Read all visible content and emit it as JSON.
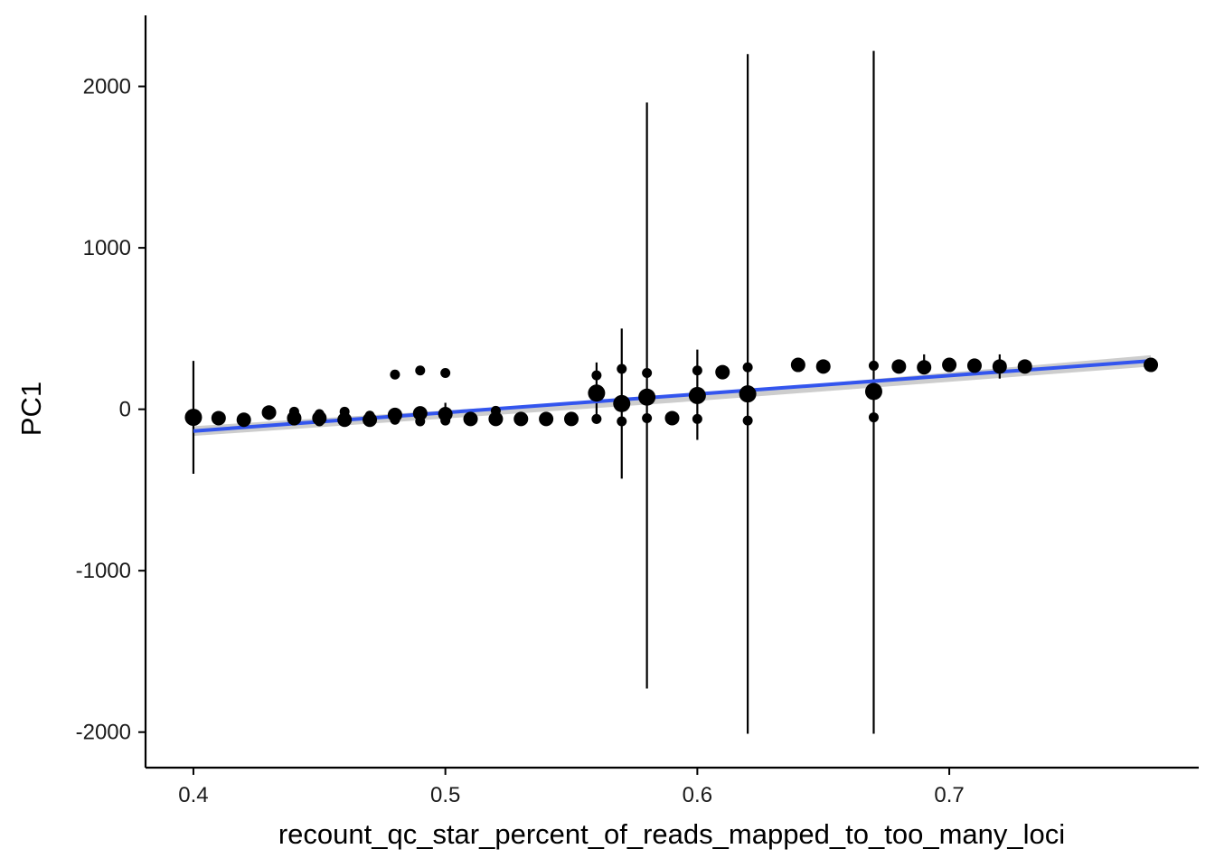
{
  "chart_data": {
    "type": "scatter",
    "title": "",
    "xlabel": "recount_qc_star_percent_of_reads_mapped_to_too_many_loci",
    "ylabel": "PC1",
    "xlim": [
      0.381,
      0.799
    ],
    "ylim": [
      -2220,
      2440
    ],
    "x_ticks": [
      0.4,
      0.5,
      0.6,
      0.7
    ],
    "x_tick_labels": [
      "0.4",
      "0.5",
      "0.6",
      "0.7"
    ],
    "y_ticks": [
      -2000,
      -1000,
      0,
      1000,
      2000
    ],
    "y_tick_labels": [
      "-2000",
      "-1000",
      "0",
      "1000",
      "2000"
    ],
    "grid": false,
    "points": [
      {
        "x": 0.4,
        "y": -50,
        "size": "large"
      },
      {
        "x": 0.41,
        "y": -55,
        "size": "medium"
      },
      {
        "x": 0.42,
        "y": -65,
        "size": "medium"
      },
      {
        "x": 0.43,
        "y": -20,
        "size": "medium"
      },
      {
        "x": 0.43,
        "y": -35,
        "size": "small"
      },
      {
        "x": 0.44,
        "y": -15,
        "size": "small"
      },
      {
        "x": 0.44,
        "y": -55,
        "size": "medium"
      },
      {
        "x": 0.44,
        "y": -70,
        "size": "small"
      },
      {
        "x": 0.45,
        "y": -30,
        "size": "small"
      },
      {
        "x": 0.45,
        "y": -55,
        "size": "medium"
      },
      {
        "x": 0.45,
        "y": -75,
        "size": "small"
      },
      {
        "x": 0.46,
        "y": -15,
        "size": "small"
      },
      {
        "x": 0.46,
        "y": -65,
        "size": "medium"
      },
      {
        "x": 0.47,
        "y": -65,
        "size": "medium"
      },
      {
        "x": 0.47,
        "y": -40,
        "size": "small"
      },
      {
        "x": 0.48,
        "y": 215,
        "size": "small"
      },
      {
        "x": 0.48,
        "y": -35,
        "size": "medium"
      },
      {
        "x": 0.48,
        "y": -65,
        "size": "small"
      },
      {
        "x": 0.49,
        "y": 240,
        "size": "small"
      },
      {
        "x": 0.49,
        "y": -25,
        "size": "medium"
      },
      {
        "x": 0.49,
        "y": -75,
        "size": "small"
      },
      {
        "x": 0.5,
        "y": 225,
        "size": "small"
      },
      {
        "x": 0.5,
        "y": -30,
        "size": "medium"
      },
      {
        "x": 0.5,
        "y": -70,
        "size": "small"
      },
      {
        "x": 0.51,
        "y": -60,
        "size": "medium"
      },
      {
        "x": 0.52,
        "y": -10,
        "size": "small"
      },
      {
        "x": 0.52,
        "y": -60,
        "size": "medium"
      },
      {
        "x": 0.53,
        "y": -60,
        "size": "medium"
      },
      {
        "x": 0.54,
        "y": -60,
        "size": "medium"
      },
      {
        "x": 0.55,
        "y": -60,
        "size": "medium"
      },
      {
        "x": 0.56,
        "y": 210,
        "size": "small"
      },
      {
        "x": 0.56,
        "y": 100,
        "size": "large"
      },
      {
        "x": 0.56,
        "y": -60,
        "size": "small"
      },
      {
        "x": 0.57,
        "y": 250,
        "size": "small"
      },
      {
        "x": 0.57,
        "y": 35,
        "size": "large"
      },
      {
        "x": 0.57,
        "y": -75,
        "size": "small"
      },
      {
        "x": 0.58,
        "y": 225,
        "size": "small"
      },
      {
        "x": 0.58,
        "y": 75,
        "size": "large"
      },
      {
        "x": 0.58,
        "y": -55,
        "size": "small"
      },
      {
        "x": 0.59,
        "y": -55,
        "size": "medium"
      },
      {
        "x": 0.6,
        "y": 240,
        "size": "small"
      },
      {
        "x": 0.6,
        "y": 85,
        "size": "large"
      },
      {
        "x": 0.6,
        "y": -60,
        "size": "small"
      },
      {
        "x": 0.61,
        "y": 230,
        "size": "medium"
      },
      {
        "x": 0.62,
        "y": 260,
        "size": "small"
      },
      {
        "x": 0.62,
        "y": 95,
        "size": "large"
      },
      {
        "x": 0.62,
        "y": -70,
        "size": "small"
      },
      {
        "x": 0.64,
        "y": 275,
        "size": "medium"
      },
      {
        "x": 0.65,
        "y": 265,
        "size": "medium"
      },
      {
        "x": 0.67,
        "y": 270,
        "size": "small"
      },
      {
        "x": 0.67,
        "y": 110,
        "size": "large"
      },
      {
        "x": 0.67,
        "y": -50,
        "size": "small"
      },
      {
        "x": 0.68,
        "y": 265,
        "size": "medium"
      },
      {
        "x": 0.69,
        "y": 260,
        "size": "medium"
      },
      {
        "x": 0.7,
        "y": 275,
        "size": "medium"
      },
      {
        "x": 0.71,
        "y": 270,
        "size": "medium"
      },
      {
        "x": 0.72,
        "y": 265,
        "size": "medium"
      },
      {
        "x": 0.73,
        "y": 265,
        "size": "medium"
      },
      {
        "x": 0.78,
        "y": 275,
        "size": "medium"
      }
    ],
    "error_bars": [
      {
        "x": 0.4,
        "ymin": -400,
        "ymax": 300
      },
      {
        "x": 0.43,
        "ymin": -60,
        "ymax": 20
      },
      {
        "x": 0.44,
        "ymin": -90,
        "ymax": 0
      },
      {
        "x": 0.45,
        "ymin": -90,
        "ymax": 0
      },
      {
        "x": 0.46,
        "ymin": -90,
        "ymax": 0
      },
      {
        "x": 0.47,
        "ymin": -90,
        "ymax": -10
      },
      {
        "x": 0.48,
        "ymin": -90,
        "ymax": 0
      },
      {
        "x": 0.49,
        "ymin": -90,
        "ymax": 0
      },
      {
        "x": 0.5,
        "ymin": -90,
        "ymax": 40
      },
      {
        "x": 0.56,
        "ymin": -90,
        "ymax": 290
      },
      {
        "x": 0.57,
        "ymin": -430,
        "ymax": 500
      },
      {
        "x": 0.58,
        "ymin": -1730,
        "ymax": 1900
      },
      {
        "x": 0.6,
        "ymin": -190,
        "ymax": 370
      },
      {
        "x": 0.62,
        "ymin": -2010,
        "ymax": 2200
      },
      {
        "x": 0.67,
        "ymin": -2010,
        "ymax": 2220
      },
      {
        "x": 0.69,
        "ymin": 220,
        "ymax": 340
      },
      {
        "x": 0.72,
        "ymin": 190,
        "ymax": 340
      }
    ],
    "fit_line": {
      "method": "linear",
      "x": [
        0.4,
        0.78
      ],
      "y": [
        -135,
        300
      ],
      "color": "#3355ee",
      "ribbon": {
        "x": [
          0.4,
          0.59,
          0.78
        ],
        "ymin": [
          -165,
          40,
          265
        ],
        "ymax": [
          -105,
          80,
          335
        ],
        "color": "#c8c8c8"
      }
    },
    "colors": {
      "points": "#000000",
      "error_bars": "#000000",
      "axis": "#000000"
    }
  }
}
